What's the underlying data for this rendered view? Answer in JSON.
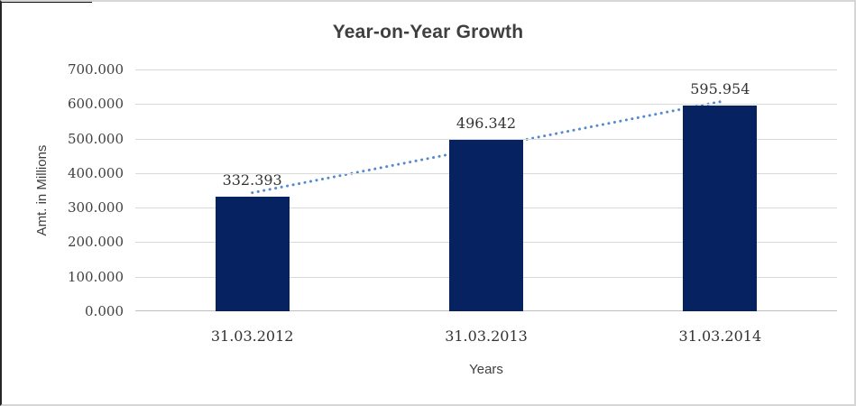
{
  "frame": {
    "background": "#ffffff",
    "border_dark": "#262626",
    "border_light": "#d6d6d6"
  },
  "chart_data": {
    "type": "bar",
    "title": "Year-on-Year Growth",
    "xlabel": "Years",
    "ylabel": "Amt. in Millions",
    "categories": [
      "31.03.2012",
      "31.03.2013",
      "31.03.2014"
    ],
    "values": [
      332.393,
      496.342,
      595.954
    ],
    "data_labels": [
      "332.393",
      "496.342",
      "595.954"
    ],
    "y_ticks": [
      "700.000",
      "600.000",
      "500.000",
      "400.000",
      "300.000",
      "200.000",
      "100.000",
      "0.000"
    ],
    "ylim": [
      0,
      700
    ],
    "grid": true,
    "legend": "none",
    "bar_color": "#062260",
    "gridline_color": "#d9d9d9",
    "axis_line_color": "#bfbfbf",
    "trendline": {
      "type": "linear",
      "style": "dotted",
      "color": "#5389ce"
    }
  }
}
